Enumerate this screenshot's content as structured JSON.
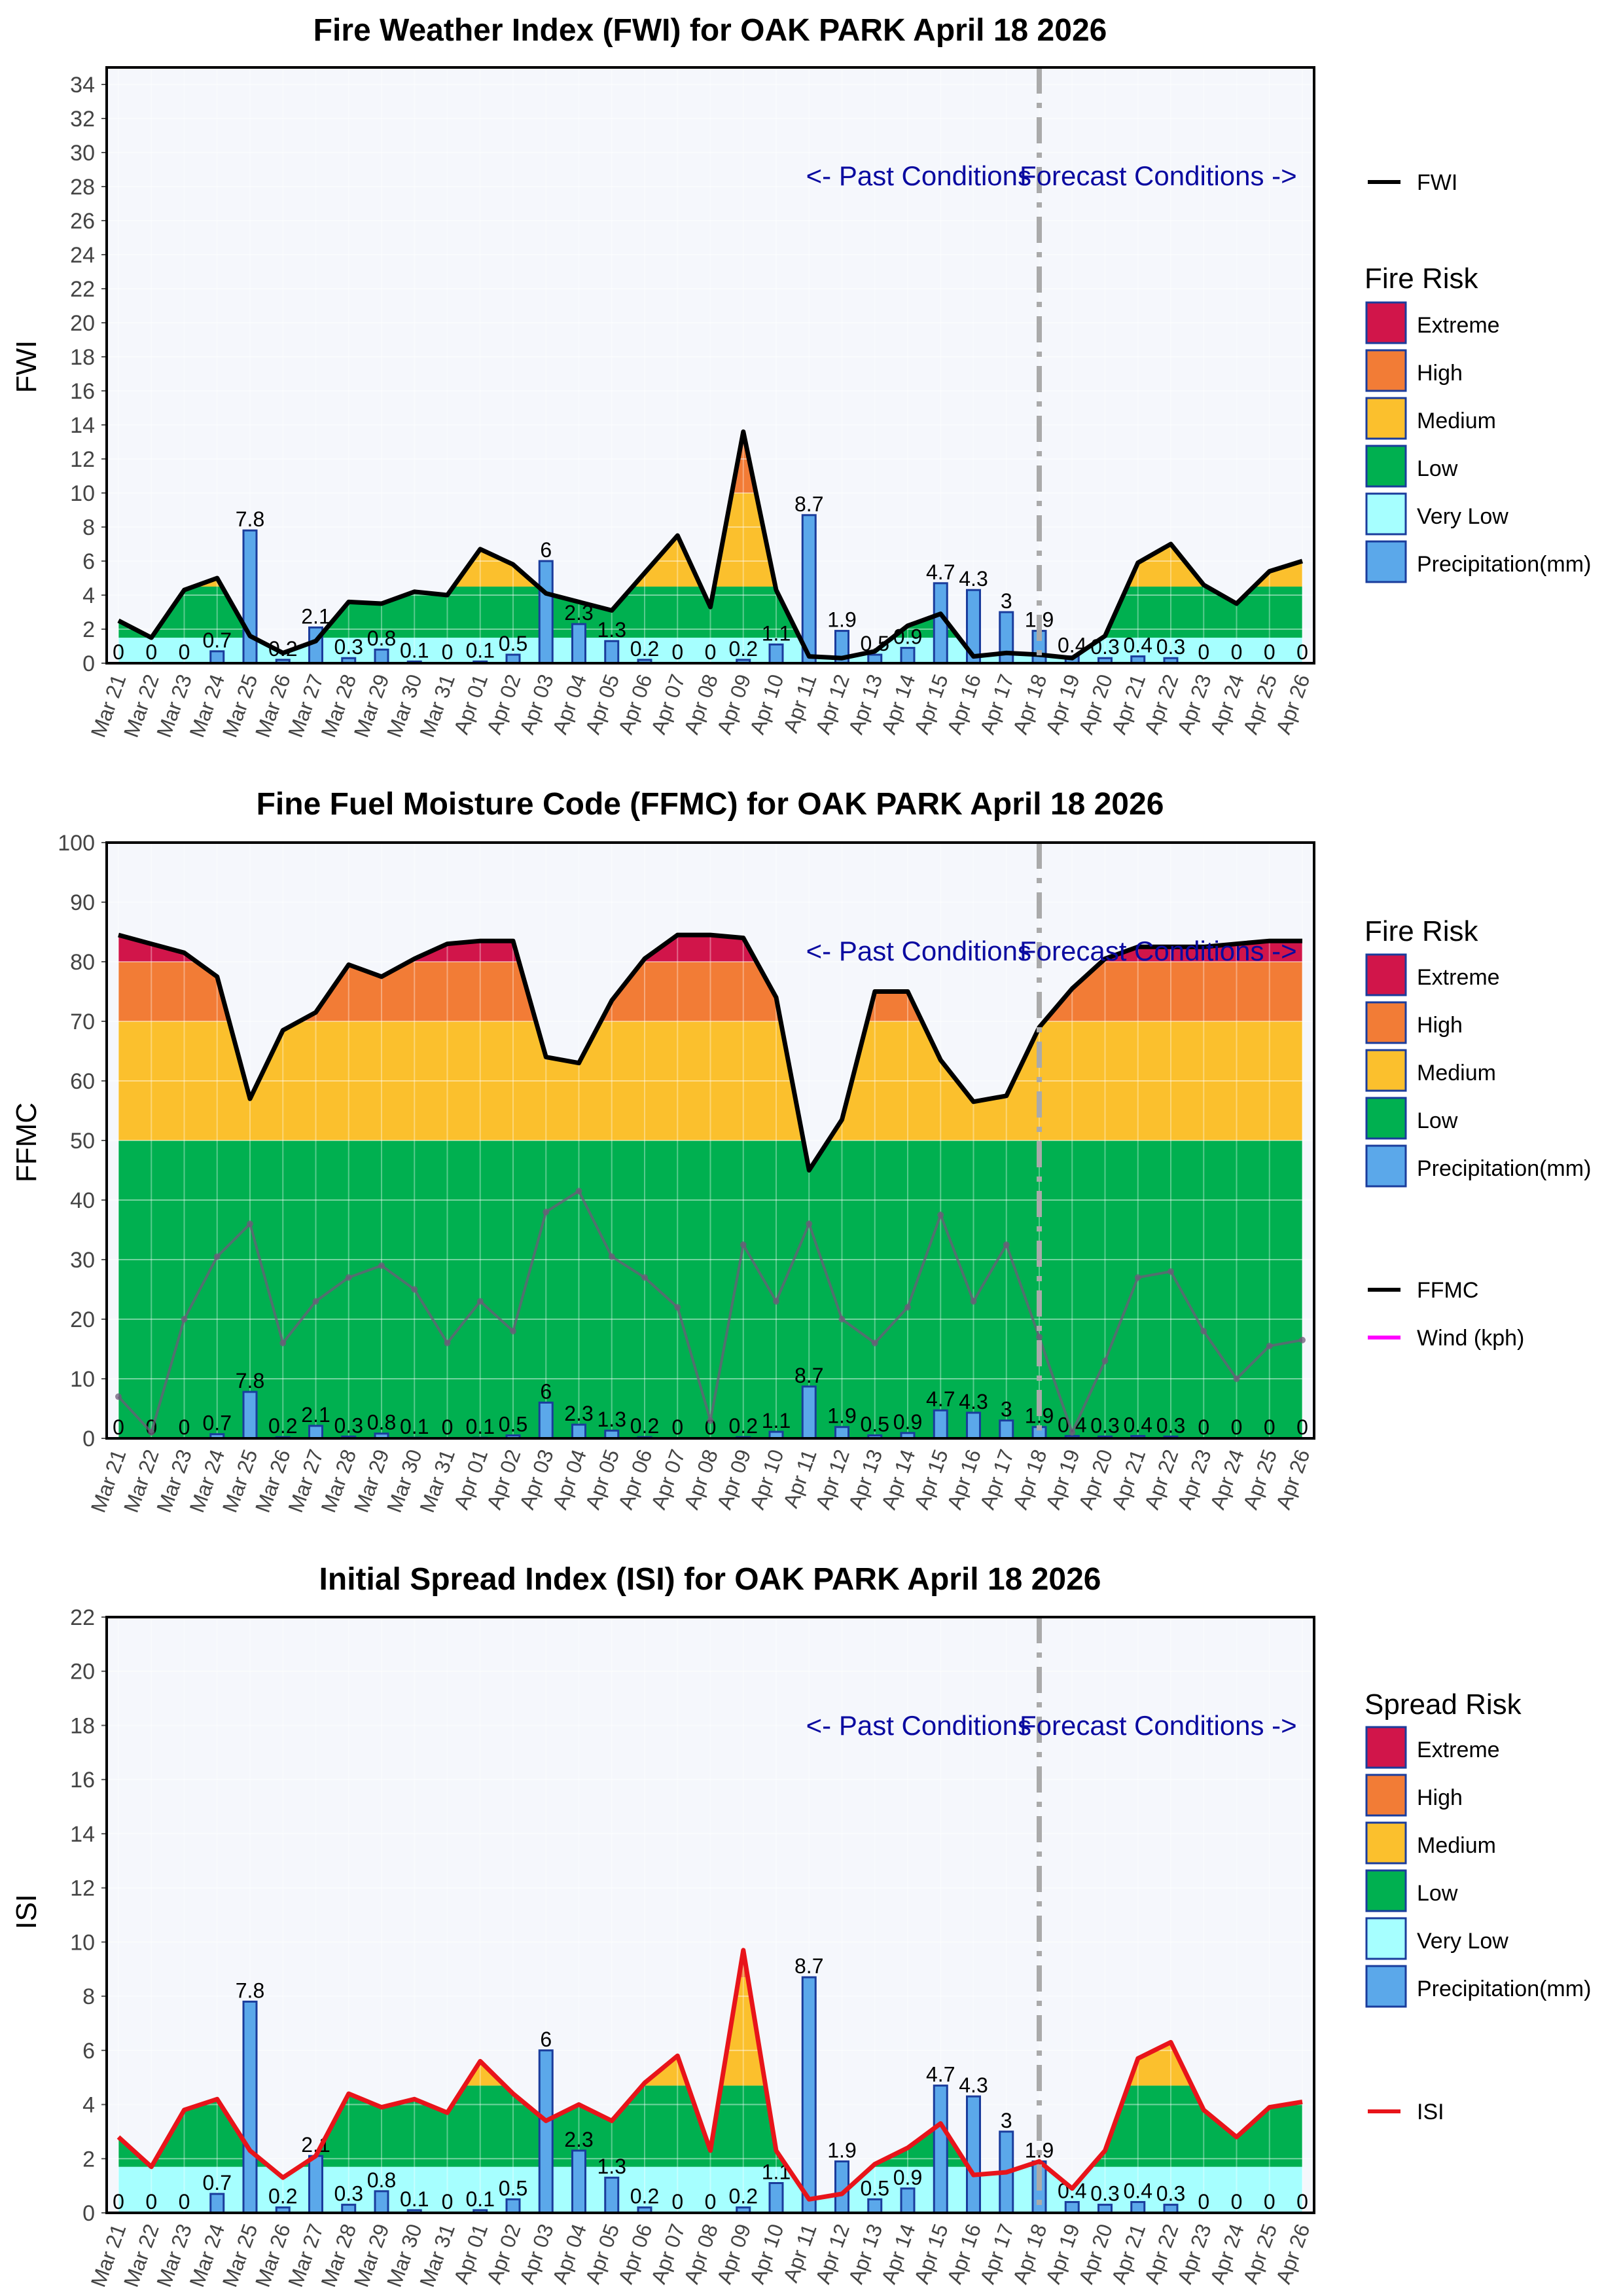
{
  "dates": [
    "Mar 21",
    "Mar 22",
    "Mar 23",
    "Mar 24",
    "Mar 25",
    "Mar 26",
    "Mar 27",
    "Mar 28",
    "Mar 29",
    "Mar 30",
    "Mar 31",
    "Apr 01",
    "Apr 02",
    "Apr 03",
    "Apr 04",
    "Apr 05",
    "Apr 06",
    "Apr 07",
    "Apr 08",
    "Apr 09",
    "Apr 10",
    "Apr 11",
    "Apr 12",
    "Apr 13",
    "Apr 14",
    "Apr 15",
    "Apr 16",
    "Apr 17",
    "Apr 18",
    "Apr 19",
    "Apr 20",
    "Apr 21",
    "Apr 22",
    "Apr 23",
    "Apr 24",
    "Apr 25",
    "Apr 26"
  ],
  "precip": [
    0,
    0,
    0,
    0.7,
    7.8,
    0.2,
    2.1,
    0.3,
    0.8,
    0.1,
    0,
    0.1,
    0.5,
    6,
    2.3,
    1.3,
    0.2,
    0,
    0,
    0.2,
    1.1,
    8.7,
    1.9,
    0.5,
    0.9,
    4.7,
    4.3,
    3,
    1.9,
    0.4,
    0.3,
    0.4,
    0.3,
    0,
    0,
    0,
    0
  ],
  "precip_labels": [
    "0",
    "0",
    "0",
    "0.7",
    "7.8",
    "0.2",
    "2.1",
    "0.3",
    "0.8",
    "0.1",
    "0",
    "0.1",
    "0.5",
    "6",
    "2.3",
    "1.3",
    "0.2",
    "0",
    "0",
    "0.2",
    "1.1",
    "8.7",
    "1.9",
    "0.5",
    "0.9",
    "4.7",
    "4.3",
    "3",
    "1.9",
    "0.4",
    "0.3",
    "0.4",
    "0.3",
    "0",
    "0",
    "0",
    "0"
  ],
  "annotations": {
    "past": "<- Past Conditions",
    "forecast": "Forecast Conditions ->"
  },
  "colors": {
    "extreme": "#d1154a",
    "high": "#f27c36",
    "medium": "#fbc02d",
    "low": "#00b050",
    "very_low": "#a6ffff",
    "precip": "#5ba8ea",
    "precip_edge": "#1a3c9c",
    "plot_bg": "#f5f7fc",
    "fwi_line": "#000000",
    "ffmc_line": "#000000",
    "wind_line": "#6e5b7a",
    "wind_legend": "#ff00ff",
    "isi_line": "#e8141a",
    "divider": "#aaaaaa"
  },
  "chart_data": [
    {
      "type": "area",
      "title": "Fire Weather Index (FWI) for OAK PARK April 18 2026",
      "ylabel": "FWI",
      "xlabel": "",
      "ylim": [
        0,
        35
      ],
      "yticks": [
        0,
        2,
        4,
        6,
        8,
        10,
        12,
        14,
        16,
        18,
        20,
        22,
        24,
        26,
        28,
        30,
        32,
        34
      ],
      "risk_bands": [
        {
          "name": "Very Low",
          "from": 0,
          "to": 1.5
        },
        {
          "name": "Low",
          "from": 1.5,
          "to": 4.5
        },
        {
          "name": "Medium",
          "from": 4.5,
          "to": 10
        },
        {
          "name": "High",
          "from": 10,
          "to": 18
        },
        {
          "name": "Extreme",
          "from": 18,
          "to": 35
        }
      ],
      "series": [
        {
          "name": "FWI",
          "values": [
            2.5,
            1.5,
            4.3,
            5.0,
            1.6,
            0.6,
            1.3,
            3.6,
            3.5,
            4.2,
            4.0,
            6.7,
            5.8,
            4.1,
            3.6,
            3.1,
            5.3,
            7.5,
            3.3,
            13.6,
            4.3,
            0.4,
            0.3,
            0.7,
            2.2,
            2.9,
            0.4,
            0.6,
            0.5,
            0.3,
            1.6,
            5.9,
            7.0,
            4.6,
            3.5,
            5.4,
            6.0
          ]
        },
        {
          "name": "Precipitation(mm)",
          "values": [
            0,
            0,
            0,
            0.7,
            7.8,
            0.2,
            2.1,
            0.3,
            0.8,
            0.1,
            0,
            0.1,
            0.5,
            6,
            2.3,
            1.3,
            0.2,
            0,
            0,
            0.2,
            1.1,
            8.7,
            1.9,
            0.5,
            0.9,
            4.7,
            4.3,
            3,
            1.9,
            0.4,
            0.3,
            0.4,
            0.3,
            0,
            0,
            0,
            0
          ]
        }
      ],
      "legend_line": "FWI",
      "legend_title": "Fire Risk",
      "legend_items": [
        "Extreme",
        "High",
        "Medium",
        "Low",
        "Very Low",
        "Precipitation(mm)"
      ],
      "forecast_start": "Apr 18"
    },
    {
      "type": "area",
      "title": "Fine Fuel Moisture Code (FFMC) for OAK PARK April 18 2026",
      "ylabel": "FFMC",
      "xlabel": "",
      "ylim": [
        0,
        100
      ],
      "yticks": [
        0,
        10,
        20,
        30,
        40,
        50,
        60,
        70,
        80,
        90,
        100
      ],
      "risk_bands": [
        {
          "name": "Low",
          "from": 0,
          "to": 50
        },
        {
          "name": "Medium",
          "from": 50,
          "to": 70
        },
        {
          "name": "High",
          "from": 70,
          "to": 80
        },
        {
          "name": "Extreme",
          "from": 80,
          "to": 100
        }
      ],
      "series": [
        {
          "name": "FFMC",
          "values": [
            84.5,
            83,
            81.5,
            77.5,
            57,
            68.5,
            71.5,
            79.5,
            77.5,
            80.5,
            83,
            83.5,
            83.5,
            64,
            63,
            73.5,
            80.5,
            84.5,
            84.5,
            84,
            74,
            45,
            53.5,
            75,
            75,
            63.5,
            56.5,
            57.5,
            69,
            75.5,
            80.5,
            82.5,
            82.5,
            82.5,
            83,
            83.5,
            83.5
          ]
        },
        {
          "name": "Wind (kph)",
          "values": [
            7,
            1,
            20,
            30.5,
            36,
            16,
            23,
            27,
            29,
            25,
            16,
            23,
            18,
            38,
            41.5,
            30.5,
            27,
            22,
            3,
            32.5,
            23,
            36,
            20,
            16,
            22,
            37.5,
            23,
            32.5,
            17,
            1,
            13,
            27,
            28,
            18,
            10,
            15.5,
            16.5
          ]
        },
        {
          "name": "Precipitation(mm)",
          "values": [
            0,
            0,
            0,
            0.7,
            7.8,
            0.2,
            2.1,
            0.3,
            0.8,
            0.1,
            0,
            0.1,
            0.5,
            6,
            2.3,
            1.3,
            0.2,
            0,
            0,
            0.2,
            1.1,
            8.7,
            1.9,
            0.5,
            0.9,
            4.7,
            4.3,
            3,
            1.9,
            0.4,
            0.3,
            0.4,
            0.3,
            0,
            0,
            0,
            0
          ]
        }
      ],
      "legend_title": "Fire Risk",
      "legend_items": [
        "Extreme",
        "High",
        "Medium",
        "Low",
        "Precipitation(mm)"
      ],
      "legend_lines": [
        "FFMC",
        "Wind (kph)"
      ],
      "forecast_start": "Apr 18"
    },
    {
      "type": "area",
      "title": "Initial Spread Index (ISI) for OAK PARK April 18 2026",
      "ylabel": "ISI",
      "xlabel": "",
      "ylim": [
        0,
        22
      ],
      "yticks": [
        0,
        2,
        4,
        6,
        8,
        10,
        12,
        14,
        16,
        18,
        20,
        22
      ],
      "risk_bands": [
        {
          "name": "Very Low",
          "from": 0,
          "to": 1.7
        },
        {
          "name": "Low",
          "from": 1.7,
          "to": 4.7
        },
        {
          "name": "Medium",
          "from": 4.7,
          "to": 8.7
        },
        {
          "name": "High",
          "from": 8.7,
          "to": 13
        },
        {
          "name": "Extreme",
          "from": 13,
          "to": 22
        }
      ],
      "series": [
        {
          "name": "ISI",
          "values": [
            2.8,
            1.7,
            3.8,
            4.2,
            2.3,
            1.3,
            2.1,
            4.4,
            3.9,
            4.2,
            3.7,
            5.6,
            4.4,
            3.4,
            4.0,
            3.4,
            4.8,
            5.8,
            2.3,
            9.7,
            2.3,
            0.5,
            0.7,
            1.8,
            2.4,
            3.3,
            1.4,
            1.5,
            1.9,
            0.9,
            2.3,
            5.7,
            6.3,
            3.8,
            2.8,
            3.9,
            4.1
          ]
        },
        {
          "name": "Precipitation(mm)",
          "values": [
            0,
            0,
            0,
            0.7,
            7.8,
            0.2,
            2.1,
            0.3,
            0.8,
            0.1,
            0,
            0.1,
            0.5,
            6,
            2.3,
            1.3,
            0.2,
            0,
            0,
            0.2,
            1.1,
            8.7,
            1.9,
            0.5,
            0.9,
            4.7,
            4.3,
            3,
            1.9,
            0.4,
            0.3,
            0.4,
            0.3,
            0,
            0,
            0,
            0
          ]
        }
      ],
      "legend_line": "ISI",
      "legend_title": "Spread Risk",
      "legend_items": [
        "Extreme",
        "High",
        "Medium",
        "Low",
        "Very Low",
        "Precipitation(mm)"
      ],
      "forecast_start": "Apr 18"
    }
  ]
}
